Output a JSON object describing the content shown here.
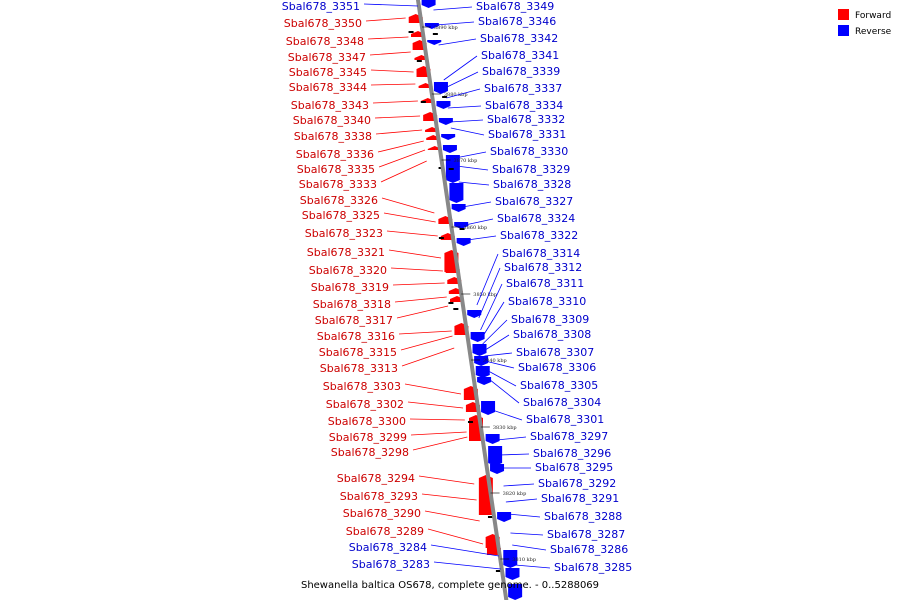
{
  "legend": {
    "forward": {
      "label": "Forward",
      "color": "#ff0000"
    },
    "reverse": {
      "label": "Reverse",
      "color": "#0000ff"
    }
  },
  "footer": "Shewanella baltica OS678, complete genome. - 0..5288069",
  "ticks": [
    "3890 kbp",
    "3880 kbp",
    "3870 kbp",
    "3860 kbp",
    "3850 kbp",
    "3840 kbp",
    "3830 kbp",
    "3820 kbp",
    "3810 kbp"
  ],
  "left_labels": [
    {
      "t": "Sbal678_3351",
      "c": "b"
    },
    {
      "t": "Sbal678_3350",
      "c": "r"
    },
    {
      "t": "Sbal678_3348",
      "c": "r"
    },
    {
      "t": "Sbal678_3347",
      "c": "r"
    },
    {
      "t": "Sbal678_3345",
      "c": "r"
    },
    {
      "t": "Sbal678_3344",
      "c": "r"
    },
    {
      "t": "Sbal678_3343",
      "c": "r"
    },
    {
      "t": "Sbal678_3340",
      "c": "r"
    },
    {
      "t": "Sbal678_3338",
      "c": "r"
    },
    {
      "t": "Sbal678_3336",
      "c": "r"
    },
    {
      "t": "Sbal678_3335",
      "c": "r"
    },
    {
      "t": "Sbal678_3333",
      "c": "r"
    },
    {
      "t": "Sbal678_3326",
      "c": "r"
    },
    {
      "t": "Sbal678_3325",
      "c": "r"
    },
    {
      "t": "Sbal678_3323",
      "c": "r"
    },
    {
      "t": "Sbal678_3321",
      "c": "r"
    },
    {
      "t": "Sbal678_3320",
      "c": "r"
    },
    {
      "t": "Sbal678_3319",
      "c": "r"
    },
    {
      "t": "Sbal678_3318",
      "c": "r"
    },
    {
      "t": "Sbal678_3317",
      "c": "r"
    },
    {
      "t": "Sbal678_3316",
      "c": "r"
    },
    {
      "t": "Sbal678_3315",
      "c": "r"
    },
    {
      "t": "Sbal678_3313",
      "c": "r"
    },
    {
      "t": "Sbal678_3303",
      "c": "r"
    },
    {
      "t": "Sbal678_3302",
      "c": "r"
    },
    {
      "t": "Sbal678_3300",
      "c": "r"
    },
    {
      "t": "Sbal678_3299",
      "c": "r"
    },
    {
      "t": "Sbal678_3298",
      "c": "r"
    },
    {
      "t": "Sbal678_3294",
      "c": "r"
    },
    {
      "t": "Sbal678_3293",
      "c": "r"
    },
    {
      "t": "Sbal678_3290",
      "c": "r"
    },
    {
      "t": "Sbal678_3289",
      "c": "r"
    },
    {
      "t": "Sbal678_3284",
      "c": "b"
    },
    {
      "t": "Sbal678_3283",
      "c": "b"
    }
  ],
  "right_labels": [
    "Sbal678_3349",
    "Sbal678_3346",
    "Sbal678_3342",
    "Sbal678_3341",
    "Sbal678_3339",
    "Sbal678_3337",
    "Sbal678_3334",
    "Sbal678_3332",
    "Sbal678_3331",
    "Sbal678_3330",
    "Sbal678_3329",
    "Sbal678_3328",
    "Sbal678_3327",
    "Sbal678_3324",
    "Sbal678_3322",
    "Sbal678_3314",
    "Sbal678_3312",
    "Sbal678_3311",
    "Sbal678_3310",
    "Sbal678_3309",
    "Sbal678_3308",
    "Sbal678_3307",
    "Sbal678_3306",
    "Sbal678_3305",
    "Sbal678_3304",
    "Sbal678_3301",
    "Sbal678_3297",
    "Sbal678_3296",
    "Sbal678_3295",
    "Sbal678_3292",
    "Sbal678_3291",
    "Sbal678_3288",
    "Sbal678_3287",
    "Sbal678_3286",
    "Sbal678_3285"
  ]
}
